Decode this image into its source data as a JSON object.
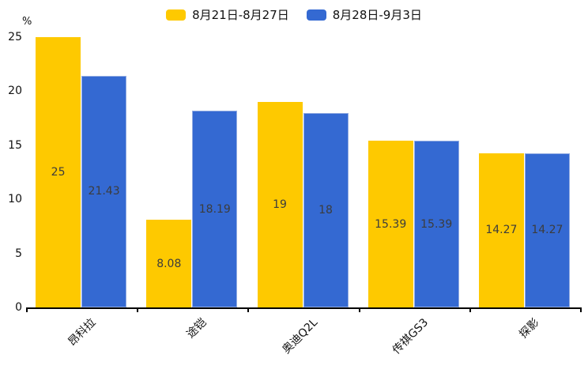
{
  "legend": {
    "items": [
      {
        "label": "8月21日-8月27日",
        "color": "#FEC900"
      },
      {
        "label": "8月28日-9月3日",
        "color": "#3469D2"
      }
    ]
  },
  "y_axis": {
    "unit": "%",
    "tick_labels": [
      "0",
      "5",
      "10",
      "15",
      "20",
      "25"
    ]
  },
  "chart_data": {
    "type": "bar",
    "title": "",
    "xlabel": "",
    "ylabel": "%",
    "ylim": [
      0,
      25
    ],
    "yticks": [
      0,
      5,
      10,
      15,
      20,
      25
    ],
    "grid": false,
    "legend_position": "top",
    "categories": [
      "昂科拉",
      "途铠",
      "奥迪Q2L",
      "传祺GS3",
      "探影"
    ],
    "series": [
      {
        "name": "8月21日-8月27日",
        "color": "#FEC900",
        "border_color": "",
        "values": [
          25,
          8.08,
          19,
          15.39,
          14.27
        ],
        "labels": [
          "25",
          "8.08",
          "19",
          "15.39",
          "14.27"
        ]
      },
      {
        "name": "8月28日-9月3日",
        "color": "#3469D2",
        "border_color": "#93ACE2",
        "values": [
          21.43,
          18.19,
          18,
          15.39,
          14.27
        ],
        "labels": [
          "21.43",
          "18.19",
          "18",
          "15.39",
          "14.27"
        ]
      }
    ]
  }
}
